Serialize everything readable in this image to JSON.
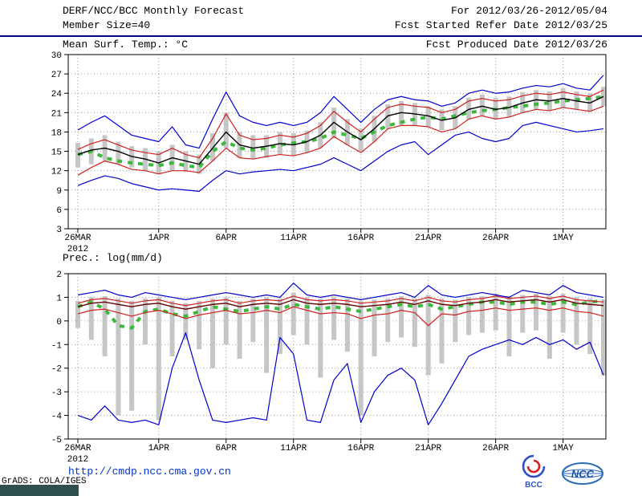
{
  "header": {
    "title": "DERF/NCC/BCC Monthly Forecast",
    "member_size": "Member Size=40",
    "temp_panel_title": "Mean Surf. Temp.: °C",
    "for_range": "For 2012/03/26-2012/05/04",
    "fcst_started": "Fcst Started Refer Date 2012/03/25",
    "fcst_produced": "Fcst Produced Date 2012/03/26"
  },
  "panel2_title": "Prec.: log(mm/d)",
  "footer": {
    "url": "http://cmdp.ncc.cma.gov.cn",
    "grads_credit": "GrADS: COLA/IGES",
    "bcc_label": "BCC",
    "ncc_label": "NCC"
  },
  "colors": {
    "header_rule": "#000080",
    "url_text": "#0033cc",
    "spread_bar": "#c6c6c6",
    "envelope_blue": "#0000cc",
    "quartile_red": "#d02020",
    "mean_temp": "#000000",
    "mean_prec": "#660000",
    "climatology_green": "#3cb83c"
  },
  "chart_data": [
    {
      "type": "line",
      "name": "mean-surface-temperature",
      "title": "Mean Surf. Temp.: °C",
      "ylim": [
        3,
        30
      ],
      "yticks": [
        3,
        6,
        9,
        12,
        15,
        18,
        21,
        24,
        27,
        30
      ],
      "n": 40,
      "year_label": "2012",
      "x_ticks": [
        {
          "i": 0,
          "label": "26MAR"
        },
        {
          "i": 6,
          "label": "1APR"
        },
        {
          "i": 11,
          "label": "6APR"
        },
        {
          "i": 16,
          "label": "11APR"
        },
        {
          "i": 21,
          "label": "16APR"
        },
        {
          "i": 26,
          "label": "21APR"
        },
        {
          "i": 31,
          "label": "26APR"
        },
        {
          "i": 36,
          "label": "1MAY"
        }
      ],
      "bars": {
        "name": "ensemble-spread",
        "color": "#c6c6c6",
        "low": [
          12.5,
          13.0,
          13.5,
          13.0,
          12.5,
          12.0,
          11.5,
          12.0,
          11.8,
          11.5,
          13.5,
          15.5,
          14.0,
          13.8,
          14.0,
          14.5,
          14.3,
          14.8,
          15.5,
          17.0,
          16.0,
          15.0,
          16.5,
          18.5,
          19.0,
          19.0,
          18.8,
          18.3,
          18.5,
          20.0,
          20.5,
          20.0,
          20.3,
          21.0,
          21.5,
          21.3,
          21.8,
          21.5,
          21.2,
          22.0
        ],
        "high": [
          16.3,
          17.0,
          17.5,
          16.5,
          15.8,
          15.5,
          15.0,
          16.0,
          15.0,
          14.5,
          17.8,
          21.0,
          18.0,
          17.5,
          17.5,
          18.0,
          17.8,
          18.2,
          19.5,
          21.8,
          20.0,
          18.5,
          20.5,
          22.3,
          22.8,
          22.5,
          22.0,
          21.5,
          22.0,
          23.3,
          23.8,
          23.3,
          23.5,
          24.2,
          24.5,
          24.3,
          24.8,
          24.3,
          24.0,
          25.0
        ]
      },
      "series": [
        {
          "name": "climatology",
          "color": "#3cb83c",
          "width": 4,
          "dash": "6,7",
          "values": [
            14.5,
            15.0,
            14.0,
            13.5,
            13.2,
            13.0,
            12.8,
            13.2,
            12.8,
            12.5,
            15.0,
            16.5,
            15.5,
            15.2,
            15.5,
            16.0,
            16.3,
            16.5,
            17.0,
            18.0,
            17.5,
            17.0,
            18.0,
            19.0,
            19.5,
            20.0,
            20.3,
            20.0,
            20.5,
            21.0,
            21.3,
            21.5,
            21.8,
            22.0,
            22.3,
            22.5,
            22.8,
            23.0,
            23.2,
            23.5
          ]
        },
        {
          "name": "ensemble-max",
          "color": "#0000cc",
          "width": 1.2,
          "values": [
            18.3,
            19.5,
            20.5,
            19.0,
            17.5,
            17.0,
            16.5,
            18.8,
            16.0,
            15.5,
            20.0,
            24.2,
            20.5,
            19.5,
            19.0,
            19.5,
            19.0,
            19.5,
            21.0,
            23.5,
            21.5,
            19.5,
            21.5,
            23.0,
            23.5,
            23.0,
            22.8,
            22.0,
            22.5,
            24.0,
            24.5,
            24.0,
            24.2,
            24.8,
            25.2,
            25.0,
            25.5,
            24.8,
            24.5,
            26.8
          ]
        },
        {
          "name": "ensemble-min",
          "color": "#0000cc",
          "width": 1.2,
          "values": [
            9.7,
            10.5,
            11.2,
            10.8,
            10.0,
            9.5,
            9.0,
            9.2,
            9.0,
            8.8,
            10.5,
            12.0,
            11.5,
            11.8,
            12.0,
            12.2,
            12.0,
            12.5,
            13.0,
            14.0,
            13.0,
            12.0,
            13.5,
            15.0,
            16.0,
            16.5,
            14.5,
            16.0,
            17.5,
            18.0,
            17.0,
            16.5,
            17.0,
            19.0,
            19.5,
            19.0,
            18.5,
            18.0,
            18.2,
            18.5
          ]
        },
        {
          "name": "upper-quartile",
          "color": "#d02020",
          "width": 1.2,
          "values": [
            15.3,
            16.2,
            16.8,
            16.0,
            15.2,
            14.8,
            14.5,
            15.5,
            14.5,
            14.0,
            17.0,
            20.8,
            17.5,
            16.8,
            17.0,
            17.5,
            17.2,
            17.8,
            19.0,
            21.2,
            19.5,
            18.0,
            20.0,
            21.8,
            22.3,
            22.0,
            21.8,
            21.0,
            21.5,
            22.8,
            23.2,
            22.8,
            23.0,
            23.6,
            24.0,
            23.8,
            24.2,
            23.8,
            23.5,
            24.5
          ]
        },
        {
          "name": "lower-quartile",
          "color": "#d02020",
          "width": 1.2,
          "values": [
            11.3,
            12.5,
            13.5,
            13.0,
            12.2,
            12.0,
            11.5,
            12.0,
            12.0,
            11.7,
            13.5,
            15.5,
            14.0,
            13.8,
            14.2,
            14.5,
            14.3,
            14.8,
            15.5,
            17.3,
            16.0,
            14.8,
            16.5,
            18.5,
            19.0,
            19.0,
            18.8,
            18.0,
            18.5,
            20.0,
            20.5,
            20.0,
            20.3,
            21.0,
            21.5,
            21.3,
            21.8,
            21.5,
            21.2,
            22.0
          ]
        },
        {
          "name": "ensemble-mean",
          "color": "#000000",
          "width": 1.4,
          "values": [
            14.5,
            15.2,
            15.5,
            15.0,
            14.2,
            13.8,
            13.2,
            14.0,
            13.5,
            13.0,
            15.5,
            18.0,
            16.0,
            15.5,
            15.8,
            16.2,
            16.0,
            16.5,
            17.5,
            19.5,
            18.0,
            16.8,
            18.5,
            20.5,
            21.0,
            20.8,
            20.5,
            19.8,
            20.2,
            21.5,
            22.0,
            21.5,
            21.8,
            22.5,
            23.0,
            22.8,
            23.2,
            22.8,
            22.5,
            23.5
          ]
        }
      ]
    },
    {
      "type": "line",
      "name": "precipitation",
      "title": "Prec.: log(mm/d)",
      "ylim": [
        -5,
        2
      ],
      "yticks": [
        -5,
        -4,
        -3,
        -2,
        -1,
        0,
        1,
        2
      ],
      "n": 40,
      "year_label": "2012",
      "x_ticks": [
        {
          "i": 0,
          "label": "26MAR"
        },
        {
          "i": 6,
          "label": "1APR"
        },
        {
          "i": 11,
          "label": "6APR"
        },
        {
          "i": 16,
          "label": "11APR"
        },
        {
          "i": 21,
          "label": "16APR"
        },
        {
          "i": 26,
          "label": "21APR"
        },
        {
          "i": 31,
          "label": "26APR"
        },
        {
          "i": 36,
          "label": "1MAY"
        }
      ],
      "bars": {
        "name": "ensemble-spread",
        "color": "#c6c6c6",
        "low": [
          -0.3,
          -0.8,
          -1.5,
          -4.0,
          -3.8,
          -1.0,
          -4.2,
          -1.5,
          -0.8,
          -1.2,
          -2.0,
          -1.0,
          -1.6,
          -0.9,
          -2.2,
          -1.4,
          -0.6,
          -1.0,
          -2.4,
          -0.8,
          -1.3,
          -4.0,
          -1.5,
          -0.9,
          -0.7,
          -1.1,
          -2.3,
          -1.8,
          -0.9,
          -0.6,
          -0.5,
          -0.4,
          -1.5,
          -0.5,
          -0.4,
          -1.6,
          -0.5,
          -1.0,
          -1.4,
          -2.3
        ],
        "high": [
          0.85,
          1.0,
          1.05,
          0.95,
          0.85,
          0.95,
          1.0,
          0.85,
          0.75,
          0.85,
          0.95,
          1.0,
          0.85,
          0.95,
          1.0,
          0.95,
          1.2,
          1.0,
          0.95,
          1.0,
          0.95,
          0.85,
          0.9,
          0.95,
          1.05,
          0.95,
          1.1,
          0.95,
          0.9,
          1.0,
          1.05,
          1.15,
          1.05,
          1.1,
          1.15,
          1.05,
          1.15,
          1.0,
          0.95,
          0.9
        ]
      },
      "series": [
        {
          "name": "climatology",
          "color": "#3cb83c",
          "width": 4,
          "dash": "6,7",
          "values": [
            0.6,
            0.8,
            0.5,
            -0.2,
            -0.3,
            0.4,
            0.5,
            0.3,
            0.2,
            0.4,
            0.6,
            0.5,
            0.4,
            0.5,
            0.6,
            0.5,
            0.7,
            0.6,
            0.5,
            0.6,
            0.5,
            0.4,
            0.5,
            0.6,
            0.7,
            0.6,
            0.7,
            0.5,
            0.6,
            0.7,
            0.8,
            0.8,
            0.7,
            0.8,
            0.8,
            0.7,
            0.8,
            0.7,
            0.8,
            0.85
          ]
        },
        {
          "name": "ensemble-max",
          "color": "#0000cc",
          "width": 1.2,
          "values": [
            1.1,
            1.2,
            1.3,
            1.1,
            1.0,
            1.2,
            1.1,
            1.0,
            0.9,
            1.0,
            1.1,
            1.2,
            1.1,
            1.0,
            1.1,
            1.0,
            1.6,
            1.1,
            1.0,
            1.1,
            1.0,
            0.9,
            1.0,
            1.1,
            1.2,
            1.0,
            1.5,
            1.1,
            1.0,
            1.1,
            1.2,
            1.1,
            1.0,
            1.3,
            1.2,
            1.1,
            1.5,
            1.2,
            1.1,
            1.0
          ]
        },
        {
          "name": "ensemble-min",
          "color": "#0000cc",
          "width": 1.2,
          "values": [
            -4.0,
            -4.2,
            -3.6,
            -4.2,
            -4.3,
            -4.2,
            -4.4,
            -2.0,
            -0.5,
            -2.5,
            -4.2,
            -4.3,
            -4.2,
            -4.1,
            -4.2,
            -0.7,
            -1.4,
            -4.2,
            -4.3,
            -2.5,
            -1.8,
            -4.3,
            -3.0,
            -2.3,
            -2.0,
            -2.5,
            -4.4,
            -3.5,
            -2.5,
            -1.5,
            -1.2,
            -1.0,
            -0.8,
            -1.0,
            -0.7,
            -1.0,
            -0.8,
            -1.2,
            -0.9,
            -2.3
          ]
        },
        {
          "name": "upper-quartile",
          "color": "#d02020",
          "width": 1.2,
          "values": [
            0.75,
            0.9,
            0.95,
            0.85,
            0.75,
            0.85,
            0.9,
            0.75,
            0.65,
            0.75,
            0.85,
            0.9,
            0.75,
            0.85,
            0.9,
            0.85,
            1.05,
            0.9,
            0.85,
            0.9,
            0.85,
            0.75,
            0.8,
            0.85,
            0.95,
            0.85,
            1.0,
            0.85,
            0.8,
            0.9,
            0.95,
            1.05,
            0.95,
            1.0,
            1.05,
            0.95,
            1.05,
            0.9,
            0.85,
            0.8
          ]
        },
        {
          "name": "lower-quartile",
          "color": "#d02020",
          "width": 1.2,
          "values": [
            0.3,
            0.45,
            0.5,
            0.35,
            0.2,
            0.35,
            0.45,
            0.3,
            0.1,
            0.25,
            0.35,
            0.45,
            0.3,
            0.35,
            0.45,
            0.35,
            0.6,
            0.45,
            0.3,
            0.35,
            0.3,
            0.1,
            0.25,
            0.3,
            0.45,
            0.35,
            -0.2,
            0.3,
            0.25,
            0.4,
            0.45,
            0.55,
            0.45,
            0.5,
            0.55,
            0.45,
            0.55,
            0.4,
            0.35,
            0.2
          ]
        },
        {
          "name": "ensemble-mean",
          "color": "#660000",
          "width": 1.4,
          "values": [
            0.6,
            0.75,
            0.8,
            0.7,
            0.6,
            0.7,
            0.75,
            0.6,
            0.5,
            0.6,
            0.7,
            0.75,
            0.6,
            0.7,
            0.75,
            0.7,
            0.9,
            0.75,
            0.7,
            0.75,
            0.7,
            0.6,
            0.65,
            0.7,
            0.8,
            0.7,
            0.85,
            0.7,
            0.65,
            0.75,
            0.8,
            0.9,
            0.8,
            0.85,
            0.9,
            0.8,
            0.9,
            0.75,
            0.7,
            0.65
          ]
        }
      ]
    }
  ]
}
